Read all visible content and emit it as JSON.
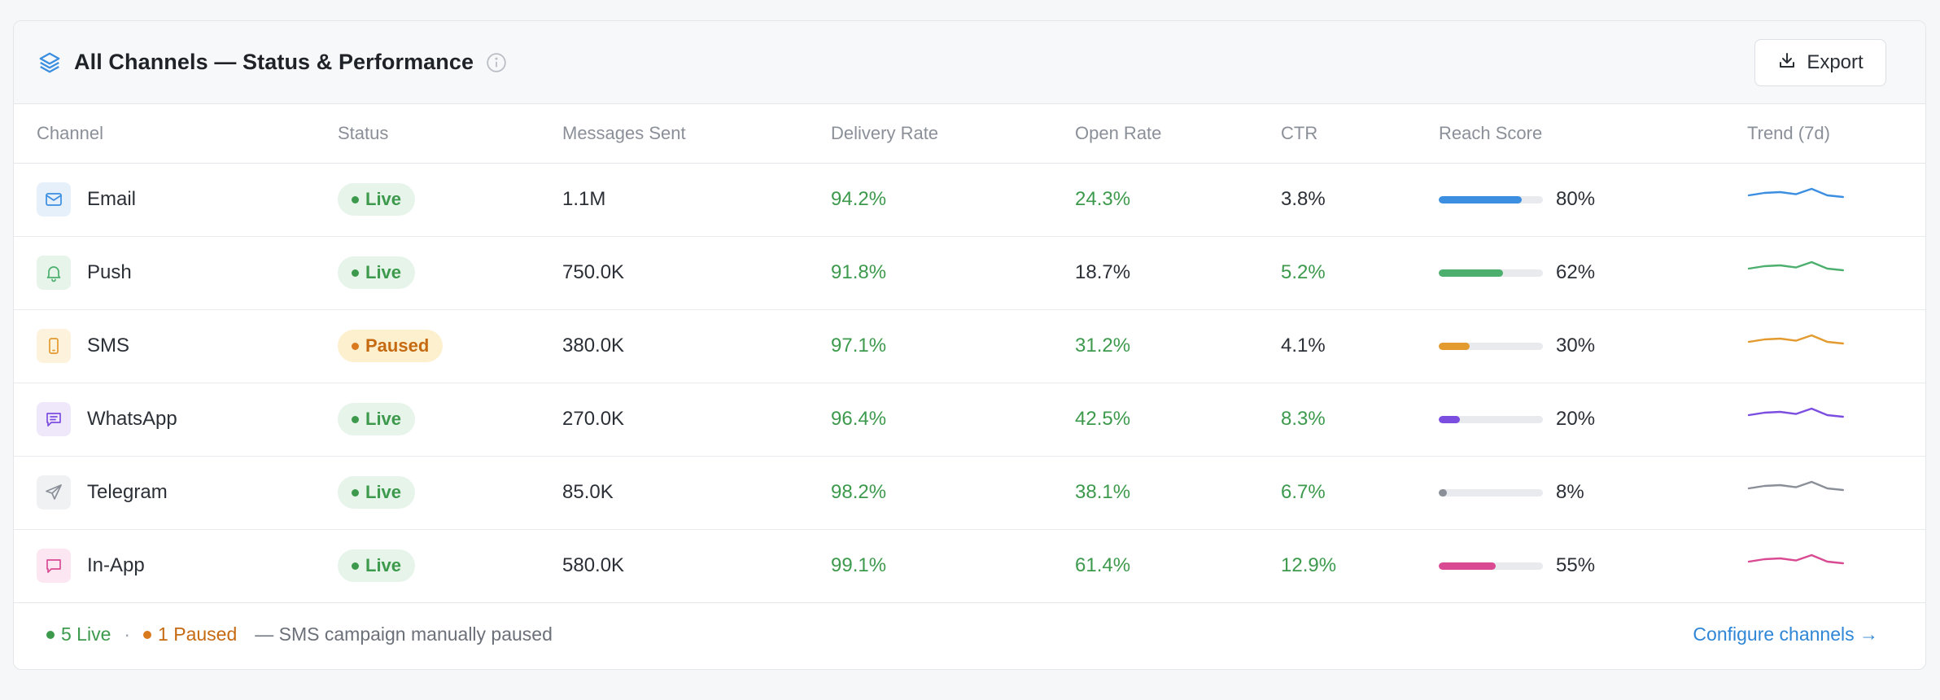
{
  "header": {
    "title": "All Channels — Status & Performance",
    "export_label": "Export"
  },
  "columns": [
    "Channel",
    "Status",
    "Messages Sent",
    "Delivery Rate",
    "Open Rate",
    "CTR",
    "Reach Score",
    "Trend (7d)"
  ],
  "rows": [
    {
      "channel": "Email",
      "icon": "mail-icon",
      "icon_color": "#3b8ee0",
      "icon_bg": "#e6f0fb",
      "status": "Live",
      "sent": "1.1M",
      "delivery": "94.2%",
      "delivery_good": true,
      "open": "24.3%",
      "open_good": true,
      "ctr": "3.8%",
      "ctr_good": false,
      "reach": "80%",
      "reach_value": 80,
      "bar_color": "#3b8ee0"
    },
    {
      "channel": "Push",
      "icon": "bell-icon",
      "icon_color": "#4caf6e",
      "icon_bg": "#e6f4ea",
      "status": "Live",
      "sent": "750.0K",
      "delivery": "91.8%",
      "delivery_good": true,
      "open": "18.7%",
      "open_good": false,
      "ctr": "5.2%",
      "ctr_good": true,
      "reach": "62%",
      "reach_value": 62,
      "bar_color": "#4caf6e"
    },
    {
      "channel": "SMS",
      "icon": "phone-icon",
      "icon_color": "#e39a2e",
      "icon_bg": "#fdf2dc",
      "status": "Paused",
      "sent": "380.0K",
      "delivery": "97.1%",
      "delivery_good": true,
      "open": "31.2%",
      "open_good": true,
      "ctr": "4.1%",
      "ctr_good": false,
      "reach": "30%",
      "reach_value": 30,
      "bar_color": "#e39a2e"
    },
    {
      "channel": "WhatsApp",
      "icon": "chat-icon",
      "icon_color": "#7c4ee0",
      "icon_bg": "#efe8fb",
      "status": "Live",
      "sent": "270.0K",
      "delivery": "96.4%",
      "delivery_good": true,
      "open": "42.5%",
      "open_good": true,
      "ctr": "8.3%",
      "ctr_good": true,
      "reach": "20%",
      "reach_value": 20,
      "bar_color": "#7c4ee0"
    },
    {
      "channel": "Telegram",
      "icon": "send-icon",
      "icon_color": "#8a8f98",
      "icon_bg": "#f0f1f3",
      "status": "Live",
      "sent": "85.0K",
      "delivery": "98.2%",
      "delivery_good": true,
      "open": "38.1%",
      "open_good": true,
      "ctr": "6.7%",
      "ctr_good": true,
      "reach": "8%",
      "reach_value": 8,
      "bar_color": "#8a8f98"
    },
    {
      "channel": "In-App",
      "icon": "message-square-icon",
      "icon_color": "#d94a93",
      "icon_bg": "#fbe6f1",
      "status": "Live",
      "sent": "580.0K",
      "delivery": "99.1%",
      "delivery_good": true,
      "open": "61.4%",
      "open_good": true,
      "ctr": "12.9%",
      "ctr_good": true,
      "reach": "55%",
      "reach_value": 55,
      "bar_color": "#d94a93"
    }
  ],
  "footer": {
    "live_summary": "5 Live",
    "separator": "·",
    "paused_summary": "1 Paused",
    "note": "— SMS campaign manually paused",
    "configure_label": "Configure channels →"
  },
  "colors": {
    "good": "#3d9a4d",
    "paused": "#c66a12",
    "link": "#2f86d6"
  }
}
